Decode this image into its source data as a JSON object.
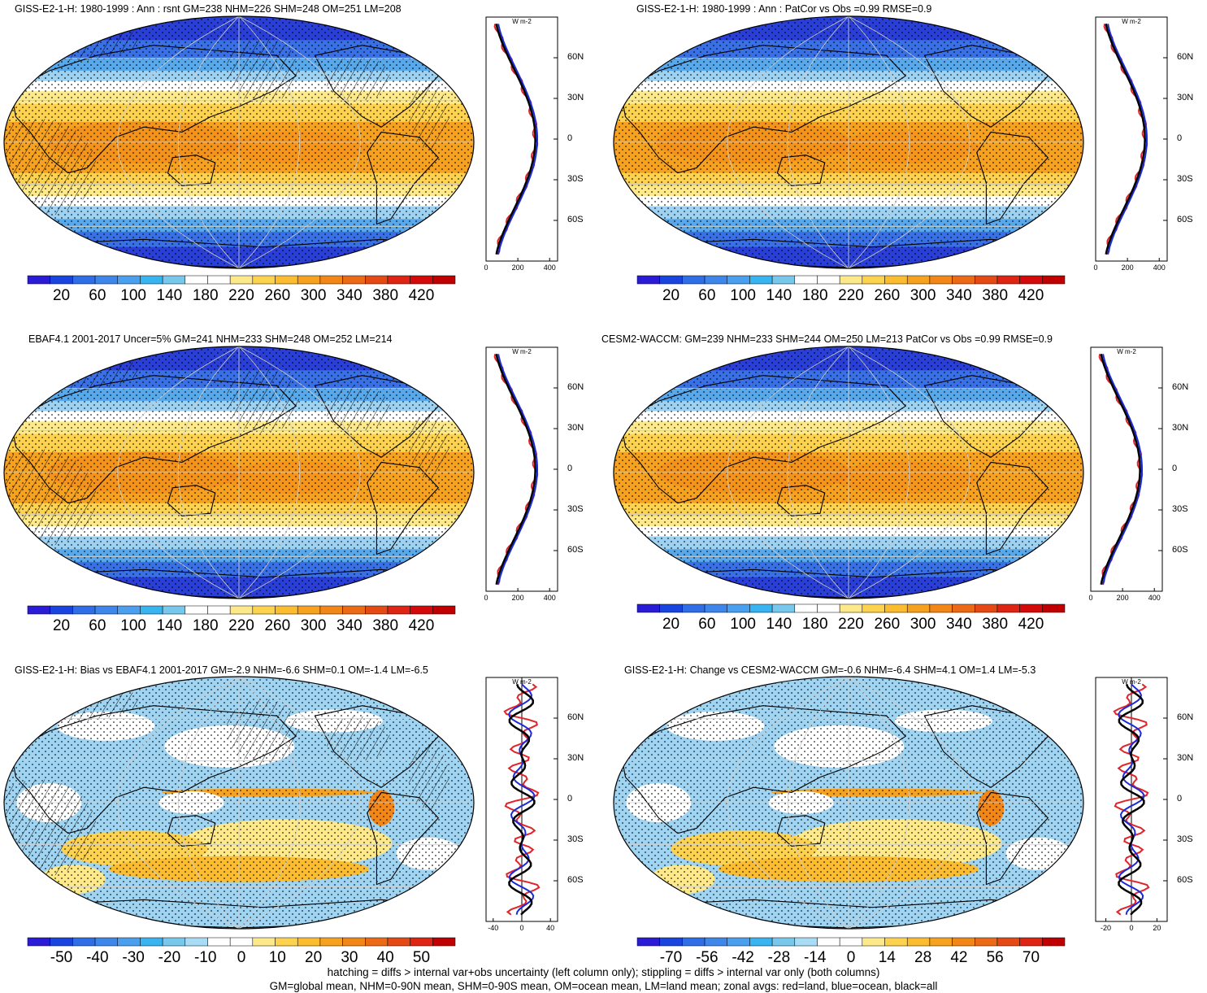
{
  "panels": [
    {
      "title": "GISS-E2-1-H: 1980-1999 : Ann : rsnt GM=238 NHM=226 SHM=248 OM=251 LM=208",
      "kind": "abs",
      "colorbar": {
        "labels": [
          "20",
          "60",
          "100",
          "140",
          "180",
          "220",
          "260",
          "300",
          "340",
          "380",
          "420"
        ]
      },
      "profile": {
        "unit": "W m-2",
        "lat_labels": [
          "60N",
          "30N",
          "0",
          "30S",
          "60S"
        ],
        "x_ticks": [
          "0",
          "200",
          "400"
        ],
        "x_range": [
          0,
          450
        ]
      },
      "hatching": true
    },
    {
      "title": "GISS-E2-1-H: 1980-1999 : Ann : PatCor vs Obs =0.99 RMSE=0.9",
      "kind": "abs",
      "colorbar": {
        "labels": [
          "20",
          "60",
          "100",
          "140",
          "180",
          "220",
          "260",
          "300",
          "340",
          "380",
          "420"
        ]
      },
      "profile": {
        "unit": "W m-2",
        "lat_labels": [
          "60N",
          "30N",
          "0",
          "30S",
          "60S"
        ],
        "x_ticks": [
          "0",
          "200",
          "400"
        ],
        "x_range": [
          0,
          450
        ]
      },
      "hatching": false
    },
    {
      "title": "EBAF4.1 2001-2017 Uncer=5% GM=241 NHM=233 SHM=248 OM=252 LM=214",
      "kind": "abs",
      "colorbar": {
        "labels": [
          "20",
          "60",
          "100",
          "140",
          "180",
          "220",
          "260",
          "300",
          "340",
          "380",
          "420"
        ]
      },
      "profile": {
        "unit": "W m-2",
        "lat_labels": [
          "60N",
          "30N",
          "0",
          "30S",
          "60S"
        ],
        "x_ticks": [
          "0",
          "200",
          "400"
        ],
        "x_range": [
          0,
          450
        ]
      },
      "hatching": true
    },
    {
      "title": "CESM2-WACCM: GM=239 NHM=233 SHM=244 OM=250 LM=213 PatCor vs Obs =0.99 RMSE=0.9",
      "kind": "abs",
      "colorbar": {
        "labels": [
          "20",
          "60",
          "100",
          "140",
          "180",
          "220",
          "260",
          "300",
          "340",
          "380",
          "420"
        ]
      },
      "profile": {
        "unit": "W m-2",
        "lat_labels": [
          "60N",
          "30N",
          "0",
          "30S",
          "60S"
        ],
        "x_ticks": [
          "0",
          "200",
          "400"
        ],
        "x_range": [
          0,
          450
        ]
      },
      "hatching": false
    },
    {
      "title": "GISS-E2-1-H: Bias vs EBAF4.1 2001-2017 GM=-2.9 NHM=-6.6 SHM=0.1 OM=-1.4 LM=-6.5",
      "kind": "diff",
      "colorbar": {
        "labels": [
          "-50",
          "-40",
          "-30",
          "-20",
          "-10",
          "0",
          "10",
          "20",
          "30",
          "40",
          "50"
        ]
      },
      "profile": {
        "unit": "W m-2",
        "lat_labels": [
          "60N",
          "30N",
          "0",
          "30S",
          "60S"
        ],
        "x_ticks": [
          "-40",
          "0",
          "40"
        ],
        "x_range": [
          -50,
          50
        ]
      },
      "hatching": true
    },
    {
      "title": "GISS-E2-1-H: Change vs CESM2-WACCM GM=-0.6 NHM=-6.4 SHM=4.1 OM=1.4 LM=-5.3",
      "kind": "diff",
      "colorbar": {
        "labels": [
          "-70",
          "-56",
          "-42",
          "-28",
          "-14",
          "0",
          "14",
          "28",
          "42",
          "56",
          "70"
        ]
      },
      "profile": {
        "unit": "W m-2",
        "lat_labels": [
          "60N",
          "30N",
          "0",
          "30S",
          "60S"
        ],
        "x_ticks": [
          "-20",
          "0",
          "20"
        ],
        "x_range": [
          -28,
          28
        ]
      },
      "hatching": false
    }
  ],
  "footer": {
    "line1": "hatching = diffs > internal var+obs uncertainty (left column only); stippling = diffs > internal var only (both columns)",
    "line2": "GM=global mean, NHM=0-90N mean, SHM=0-90S mean, OM=ocean mean, LM=land mean; zonal avgs: red=land, blue=ocean, black=all"
  },
  "colors": {
    "abs_palette": [
      "#2a1bd6",
      "#1a44e0",
      "#2f6ee6",
      "#3f86ea",
      "#4aa0ee",
      "#38b4f0",
      "#78c8ee",
      "#ffffff",
      "#ffffff",
      "#fde98a",
      "#fcd24e",
      "#fbbd2f",
      "#f7a21e",
      "#f28718",
      "#ec6a16",
      "#e64a14",
      "#de2412",
      "#d40a0a",
      "#c00000"
    ],
    "diff_palette": [
      "#2a1bd6",
      "#1a44e0",
      "#2f6ee6",
      "#3f86ea",
      "#4aa0ee",
      "#38b4f0",
      "#78c8ee",
      "#a8dcf4",
      "#ffffff",
      "#ffffff",
      "#fde98a",
      "#fcd24e",
      "#fbbd2f",
      "#f7a21e",
      "#f28718",
      "#ec6a16",
      "#e64a14",
      "#de2412",
      "#c00000"
    ],
    "land": "#e0242a",
    "ocean": "#1a2ad8",
    "all": "#000000"
  }
}
